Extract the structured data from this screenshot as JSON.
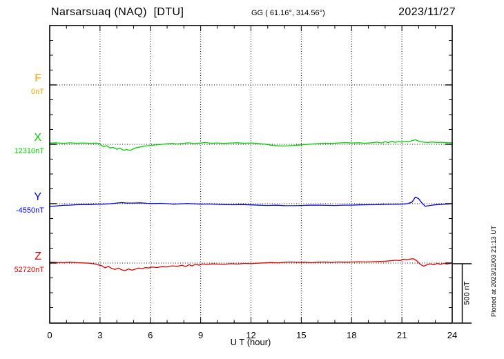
{
  "header": {
    "station_title": "Narsarsuaq (NAQ)  [DTU]",
    "gg_coords": "GG ( 61.16°, 314.56°)",
    "date": "2023/11/27"
  },
  "footer": {
    "plotted_at": "Plotted at 2023/12/03 21:13 UT"
  },
  "chart_data": {
    "type": "line",
    "title": "Narsarsuaq (NAQ)  [DTU]",
    "subtitle": "GG ( 61.16°, 314.56°)",
    "date": "2023/11/27",
    "xlabel": "U T (hour)",
    "x_range": [
      0,
      24
    ],
    "x_major_ticks": [
      0,
      3,
      6,
      9,
      12,
      15,
      18,
      21,
      24
    ],
    "x_minor_step_hours": 1,
    "grid": "dotted vertical lines every 3 hours; dotted horizontal line at each channel baseline",
    "legend_position": "left",
    "scale_bar": {
      "label": "500 nT",
      "nT": 500
    },
    "points_format": "[hour_UT, offset_nT_from_baseline]",
    "channels": [
      {
        "id": "F",
        "label": "F",
        "baseline_label": "0nT",
        "baseline_nT": 0,
        "color": "#FFA500",
        "trace_visible": false,
        "points": []
      },
      {
        "id": "X",
        "label": "X",
        "baseline_label": "12310nT",
        "baseline_nT": 12310,
        "color": "#00D000",
        "trace_visible": true,
        "points": [
          [
            0,
            10
          ],
          [
            0.4,
            12
          ],
          [
            0.8,
            8
          ],
          [
            1.2,
            12
          ],
          [
            1.6,
            9
          ],
          [
            2,
            11
          ],
          [
            2.4,
            8
          ],
          [
            2.8,
            10
          ],
          [
            3,
            2
          ],
          [
            3.2,
            -20
          ],
          [
            3.4,
            -12
          ],
          [
            3.6,
            -30
          ],
          [
            3.8,
            -26
          ],
          [
            4,
            -42
          ],
          [
            4.2,
            -34
          ],
          [
            4.4,
            -50
          ],
          [
            4.6,
            -44
          ],
          [
            4.8,
            -52
          ],
          [
            5,
            -38
          ],
          [
            5.2,
            -28
          ],
          [
            5.5,
            -20
          ],
          [
            5.8,
            -12
          ],
          [
            6.1,
            -8
          ],
          [
            6.4,
            -4
          ],
          [
            6.7,
            0
          ],
          [
            7,
            4
          ],
          [
            7.3,
            7
          ],
          [
            7.6,
            3
          ],
          [
            8,
            8
          ],
          [
            8.3,
            12
          ],
          [
            8.6,
            6
          ],
          [
            9,
            11
          ],
          [
            9.3,
            15
          ],
          [
            9.6,
            9
          ],
          [
            10,
            11
          ],
          [
            10.4,
            7
          ],
          [
            10.8,
            11
          ],
          [
            11.2,
            13
          ],
          [
            11.6,
            9
          ],
          [
            12,
            11
          ],
          [
            12.4,
            7
          ],
          [
            12.8,
            2
          ],
          [
            13.2,
            -7
          ],
          [
            13.6,
            -13
          ],
          [
            14,
            -15
          ],
          [
            14.4,
            -11
          ],
          [
            14.8,
            -7
          ],
          [
            15.2,
            -3
          ],
          [
            15.6,
            2
          ],
          [
            16,
            6
          ],
          [
            16.4,
            9
          ],
          [
            16.8,
            7
          ],
          [
            17.2,
            11
          ],
          [
            17.6,
            14
          ],
          [
            18,
            11
          ],
          [
            18.4,
            13
          ],
          [
            18.8,
            9
          ],
          [
            19.2,
            13
          ],
          [
            19.5,
            18
          ],
          [
            19.8,
            11
          ],
          [
            20,
            22
          ],
          [
            20.2,
            14
          ],
          [
            20.4,
            26
          ],
          [
            20.6,
            16
          ],
          [
            20.8,
            24
          ],
          [
            21,
            18
          ],
          [
            21.2,
            26
          ],
          [
            21.4,
            22
          ],
          [
            21.6,
            30
          ],
          [
            21.8,
            38
          ],
          [
            22,
            28
          ],
          [
            22.2,
            20
          ],
          [
            22.5,
            15
          ],
          [
            22.8,
            19
          ],
          [
            23.1,
            15
          ],
          [
            23.4,
            17
          ],
          [
            23.7,
            13
          ],
          [
            24,
            13
          ]
        ]
      },
      {
        "id": "Y",
        "label": "Y",
        "baseline_label": "-4550nT",
        "baseline_nT": -4550,
        "color": "#0000E0",
        "trace_visible": true,
        "points": [
          [
            0,
            -24
          ],
          [
            0.4,
            -19
          ],
          [
            0.8,
            -14
          ],
          [
            1.2,
            -12
          ],
          [
            1.6,
            -9
          ],
          [
            2,
            -7
          ],
          [
            2.4,
            -7
          ],
          [
            2.8,
            -5
          ],
          [
            3.2,
            -4
          ],
          [
            3.6,
            -1
          ],
          [
            4,
            5
          ],
          [
            4.3,
            9
          ],
          [
            4.6,
            5
          ],
          [
            5,
            5
          ],
          [
            5.4,
            7
          ],
          [
            5.8,
            3
          ],
          [
            6.2,
            1
          ],
          [
            6.6,
            3
          ],
          [
            7,
            0
          ],
          [
            7.4,
            -4
          ],
          [
            7.8,
            -2
          ],
          [
            8.2,
            1
          ],
          [
            8.6,
            -2
          ],
          [
            9,
            -4
          ],
          [
            9.5,
            -3
          ],
          [
            10,
            -6
          ],
          [
            10.5,
            -8
          ],
          [
            11,
            -9
          ],
          [
            11.5,
            -7
          ],
          [
            12,
            -10
          ],
          [
            12.5,
            -13
          ],
          [
            13,
            -15
          ],
          [
            13.5,
            -13
          ],
          [
            14,
            -16
          ],
          [
            14.5,
            -17
          ],
          [
            15,
            -15
          ],
          [
            15.5,
            -13
          ],
          [
            16,
            -12
          ],
          [
            16.5,
            -14
          ],
          [
            17,
            -15
          ],
          [
            17.5,
            -12
          ],
          [
            18,
            -12
          ],
          [
            18.5,
            -10
          ],
          [
            19,
            -9
          ],
          [
            19.5,
            -8
          ],
          [
            20,
            -6
          ],
          [
            20.5,
            -5
          ],
          [
            21,
            -4
          ],
          [
            21.3,
            -1
          ],
          [
            21.6,
            12
          ],
          [
            21.8,
            55
          ],
          [
            22,
            42
          ],
          [
            22.2,
            4
          ],
          [
            22.4,
            -22
          ],
          [
            22.6,
            -17
          ],
          [
            22.9,
            -11
          ],
          [
            23.2,
            -7
          ],
          [
            23.5,
            -5
          ],
          [
            23.8,
            -3
          ],
          [
            24,
            -1
          ]
        ]
      },
      {
        "id": "Z",
        "label": "Z",
        "baseline_label": "52720nT",
        "baseline_nT": 52720,
        "color": "#E00000",
        "trace_visible": true,
        "points": [
          [
            0,
            7
          ],
          [
            0.4,
            5
          ],
          [
            0.8,
            3
          ],
          [
            1.2,
            7
          ],
          [
            1.6,
            3
          ],
          [
            2,
            1
          ],
          [
            2.4,
            -2
          ],
          [
            2.7,
            -8
          ],
          [
            2.9,
            -16
          ],
          [
            3.1,
            -22
          ],
          [
            3.3,
            -40
          ],
          [
            3.5,
            -28
          ],
          [
            3.7,
            -46
          ],
          [
            3.9,
            -54
          ],
          [
            4.1,
            -42
          ],
          [
            4.3,
            -58
          ],
          [
            4.5,
            -64
          ],
          [
            4.7,
            -50
          ],
          [
            4.9,
            -60
          ],
          [
            5.1,
            -52
          ],
          [
            5.3,
            -42
          ],
          [
            5.5,
            -48
          ],
          [
            5.7,
            -38
          ],
          [
            5.9,
            -42
          ],
          [
            6.1,
            -34
          ],
          [
            6.4,
            -38
          ],
          [
            6.7,
            -30
          ],
          [
            7,
            -32
          ],
          [
            7.3,
            -24
          ],
          [
            7.6,
            -28
          ],
          [
            7.9,
            -18
          ],
          [
            8.1,
            -30
          ],
          [
            8.3,
            -14
          ],
          [
            8.5,
            -24
          ],
          [
            8.7,
            -10
          ],
          [
            8.9,
            -18
          ],
          [
            9.1,
            -8
          ],
          [
            9.4,
            -12
          ],
          [
            9.7,
            -7
          ],
          [
            10,
            -9
          ],
          [
            10.4,
            -11
          ],
          [
            10.8,
            -5
          ],
          [
            11.2,
            -9
          ],
          [
            11.6,
            -3
          ],
          [
            12,
            -5
          ],
          [
            12.4,
            -1
          ],
          [
            12.8,
            1
          ],
          [
            13.2,
            4
          ],
          [
            13.6,
            2
          ],
          [
            14,
            6
          ],
          [
            14.4,
            9
          ],
          [
            14.8,
            5
          ],
          [
            15.2,
            7
          ],
          [
            15.6,
            3
          ],
          [
            16,
            7
          ],
          [
            16.4,
            9
          ],
          [
            16.8,
            5
          ],
          [
            17.2,
            9
          ],
          [
            17.6,
            7
          ],
          [
            18,
            9
          ],
          [
            18.4,
            11
          ],
          [
            18.8,
            9
          ],
          [
            19.2,
            11
          ],
          [
            19.6,
            13
          ],
          [
            20,
            15
          ],
          [
            20.3,
            19
          ],
          [
            20.6,
            23
          ],
          [
            20.9,
            21
          ],
          [
            21.1,
            32
          ],
          [
            21.3,
            28
          ],
          [
            21.5,
            34
          ],
          [
            21.7,
            36
          ],
          [
            21.9,
            18
          ],
          [
            22.1,
            -12
          ],
          [
            22.3,
            -26
          ],
          [
            22.5,
            -14
          ],
          [
            22.7,
            -7
          ],
          [
            22.9,
            -15
          ],
          [
            23.1,
            -3
          ],
          [
            23.3,
            -11
          ],
          [
            23.5,
            -3
          ],
          [
            23.7,
            -9
          ],
          [
            24,
            2
          ]
        ]
      }
    ]
  }
}
